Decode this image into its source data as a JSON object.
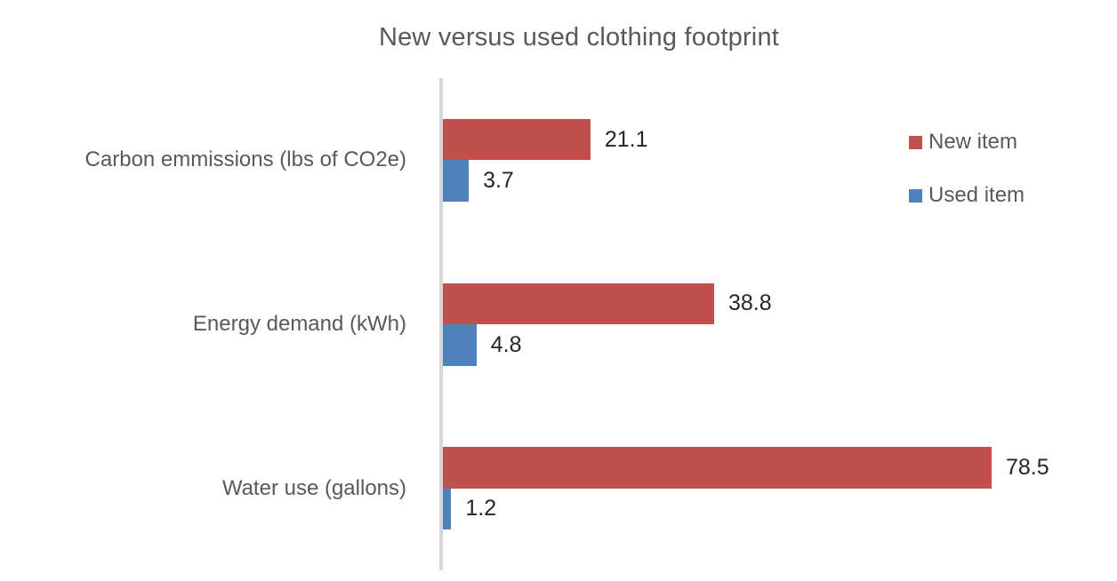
{
  "chart_data": {
    "type": "bar",
    "orientation": "horizontal",
    "title": "New versus used clothing footprint",
    "categories": [
      "Carbon emmissions (lbs of CO2e)",
      "Energy demand (kWh)",
      "Water use (gallons)"
    ],
    "series": [
      {
        "name": "New item",
        "color": "#C0504D",
        "values": [
          21.1,
          38.8,
          78.5
        ]
      },
      {
        "name": "Used item",
        "color": "#4F81BD",
        "values": [
          3.7,
          4.8,
          1.2
        ]
      }
    ],
    "value_axis": {
      "min": 0,
      "max_value_shown": 78.5,
      "tick_labels_visible": false
    },
    "data_labels": [
      "21.1",
      "3.7",
      "38.8",
      "4.8",
      "78.5",
      "1.2"
    ],
    "grid": false,
    "legend_position": "right"
  },
  "colors": {
    "new_item": "#C0504D",
    "used_item": "#4F81BD",
    "axis_line": "#D6D6D6",
    "title_text": "#595959",
    "category_text": "#595959",
    "value_text": "#262626",
    "background": "#FFFFFF"
  }
}
